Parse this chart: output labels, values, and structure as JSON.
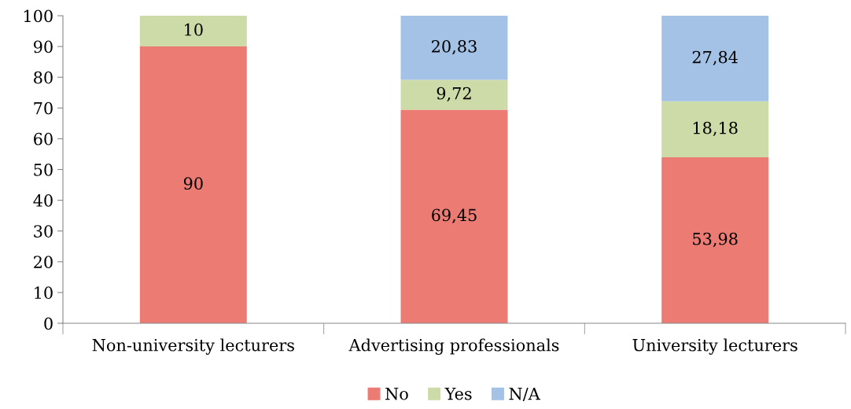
{
  "chart_data": {
    "type": "bar",
    "stacked": true,
    "categories": [
      "Non-university lecturers",
      "Advertising professionals",
      "University lecturers"
    ],
    "series": [
      {
        "name": "No",
        "color": "#ec7b74",
        "values": [
          90,
          69.45,
          53.98
        ],
        "value_labels": [
          "90",
          "69,45",
          "53,98"
        ]
      },
      {
        "name": "Yes",
        "color": "#cddba8",
        "values": [
          10,
          9.72,
          18.18
        ],
        "value_labels": [
          "10",
          "9,72",
          "18,18"
        ]
      },
      {
        "name": "N/A",
        "color": "#a3c2e6",
        "values": [
          null,
          20.83,
          27.84
        ],
        "value_labels": [
          null,
          "20,83",
          "27,84"
        ]
      }
    ],
    "ylim": [
      0,
      100
    ],
    "yticks": [
      0,
      10,
      20,
      30,
      40,
      50,
      60,
      70,
      80,
      90,
      100
    ],
    "grid": false,
    "legend": "bottom"
  }
}
